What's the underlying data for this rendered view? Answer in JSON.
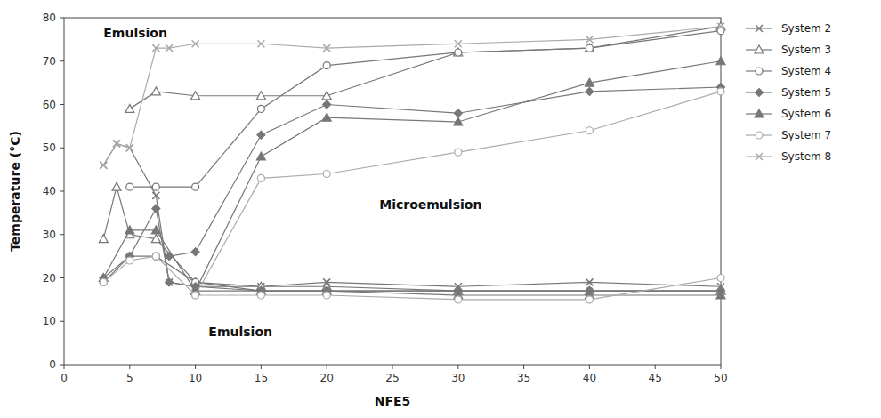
{
  "chart_data": {
    "type": "line",
    "xlabel": "NFE5",
    "ylabel": "Temperature (°C)",
    "xlim": [
      0,
      50
    ],
    "ylim": [
      0,
      80
    ],
    "xticks": [
      0,
      5,
      10,
      15,
      20,
      25,
      30,
      35,
      40,
      45,
      50
    ],
    "yticks": [
      0,
      10,
      20,
      30,
      40,
      50,
      60,
      70,
      80
    ],
    "grid": false,
    "legend": "right",
    "annotations": [
      {
        "text": "Emulsion",
        "x": 3.0,
        "y": 75.5
      },
      {
        "text": "Emulsion",
        "x": 11.0,
        "y": 6.5
      },
      {
        "text": "Microemulsion",
        "x": 24.0,
        "y": 36.0
      }
    ],
    "series": [
      {
        "name": "System 2",
        "color": "#777777",
        "marker": "x",
        "x": [
          3,
          4,
          5,
          7,
          8,
          10,
          15,
          20,
          30,
          40,
          50
        ],
        "values": [
          46,
          51,
          50,
          39,
          19,
          18,
          18,
          19,
          18,
          19,
          18
        ]
      },
      {
        "name": "System 3",
        "color": "#777777",
        "marker": "triangle-open",
        "x": [
          5,
          7,
          10,
          15,
          20,
          30,
          40,
          50
        ],
        "values": [
          59,
          63,
          62,
          62,
          62,
          72,
          73,
          78
        ]
      },
      {
        "color": "#777777",
        "marker": "triangle-open",
        "x": [
          3,
          4,
          5,
          7,
          10,
          15,
          20,
          30,
          40,
          50
        ],
        "values": [
          29,
          41,
          30,
          29,
          19,
          18,
          18,
          17,
          17,
          17
        ]
      },
      {
        "name": "System 4",
        "color": "#777777",
        "marker": "circle-open",
        "x": [
          5,
          7,
          10,
          15,
          20,
          30,
          40,
          50
        ],
        "values": [
          41,
          41,
          41,
          59,
          69,
          72,
          73,
          77
        ]
      },
      {
        "color": "#777777",
        "marker": "circle-open",
        "x": [
          3,
          5,
          7,
          10,
          15,
          20,
          30,
          40,
          50
        ],
        "values": [
          19,
          25,
          25,
          19,
          17,
          17,
          17,
          17,
          17
        ]
      },
      {
        "name": "System 5",
        "color": "#777777",
        "marker": "diamond",
        "x": [
          8,
          10,
          15,
          20,
          30,
          40,
          50
        ],
        "values": [
          25,
          26,
          53,
          60,
          58,
          63,
          64
        ]
      },
      {
        "color": "#777777",
        "marker": "diamond",
        "x": [
          3,
          5,
          7,
          8,
          10,
          15,
          20,
          30,
          40,
          50
        ],
        "values": [
          20,
          25,
          36,
          19,
          18,
          17,
          17,
          17,
          17,
          17
        ]
      },
      {
        "name": "System 6",
        "color": "#777777",
        "marker": "triangle",
        "x": [
          10,
          15,
          20,
          30,
          40,
          50
        ],
        "values": [
          17,
          48,
          57,
          56,
          65,
          70
        ]
      },
      {
        "color": "#777777",
        "marker": "triangle",
        "x": [
          3,
          5,
          7,
          10,
          15,
          20,
          30,
          40,
          50
        ],
        "values": [
          20,
          31,
          31,
          17,
          17,
          17,
          16,
          16,
          16
        ]
      },
      {
        "name": "System 7",
        "color": "#aaaaaa",
        "marker": "circle-open",
        "x": [
          10,
          15,
          20,
          30,
          40,
          50
        ],
        "values": [
          16,
          43,
          44,
          49,
          54,
          63
        ]
      },
      {
        "color": "#aaaaaa",
        "marker": "circle-open",
        "x": [
          3,
          5,
          7,
          10,
          15,
          20,
          30,
          40,
          50
        ],
        "values": [
          19,
          24,
          25,
          16,
          16,
          16,
          15,
          15,
          20
        ]
      },
      {
        "name": "System 8",
        "color": "#aaaaaa",
        "marker": "x",
        "x": [
          3,
          4,
          5,
          7,
          8,
          10,
          15,
          20,
          30,
          40,
          50
        ],
        "values": [
          46,
          51,
          50,
          73,
          73,
          74,
          74,
          73,
          74,
          75,
          78
        ]
      }
    ]
  }
}
